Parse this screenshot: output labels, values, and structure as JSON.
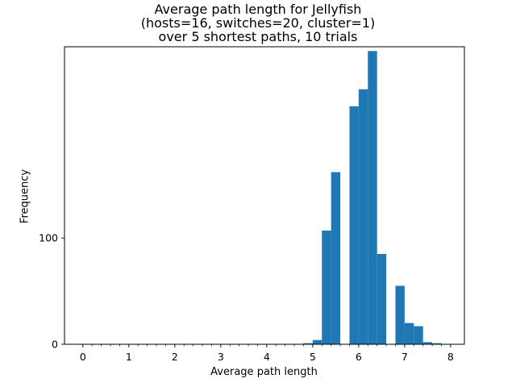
{
  "chart_data": {
    "type": "bar",
    "title_lines": [
      "Average path length for Jellyfish",
      "(hosts=16, switches=20, cluster=1)",
      "over 5 shortest paths, 10 trials"
    ],
    "xlabel": "Average path length",
    "ylabel": "Frequency",
    "xlim": [
      -0.4,
      8.3
    ],
    "ylim": [
      0,
      280
    ],
    "x_major_ticks": [
      0,
      1,
      2,
      3,
      4,
      5,
      6,
      7,
      8
    ],
    "x_minor_step": 0.2,
    "y_ticks": [
      0,
      100
    ],
    "bar_color": "#1f77b4",
    "bin_width": 0.2,
    "bins": [
      {
        "x": 4.8,
        "value": 1
      },
      {
        "x": 5.0,
        "value": 4
      },
      {
        "x": 5.2,
        "value": 107
      },
      {
        "x": 5.4,
        "value": 162
      },
      {
        "x": 5.6,
        "value": 0
      },
      {
        "x": 5.8,
        "value": 224
      },
      {
        "x": 6.0,
        "value": 240
      },
      {
        "x": 6.2,
        "value": 276
      },
      {
        "x": 6.4,
        "value": 85
      },
      {
        "x": 6.6,
        "value": 0
      },
      {
        "x": 6.8,
        "value": 55
      },
      {
        "x": 7.0,
        "value": 20
      },
      {
        "x": 7.2,
        "value": 17
      },
      {
        "x": 7.4,
        "value": 2
      },
      {
        "x": 7.6,
        "value": 1
      }
    ]
  }
}
